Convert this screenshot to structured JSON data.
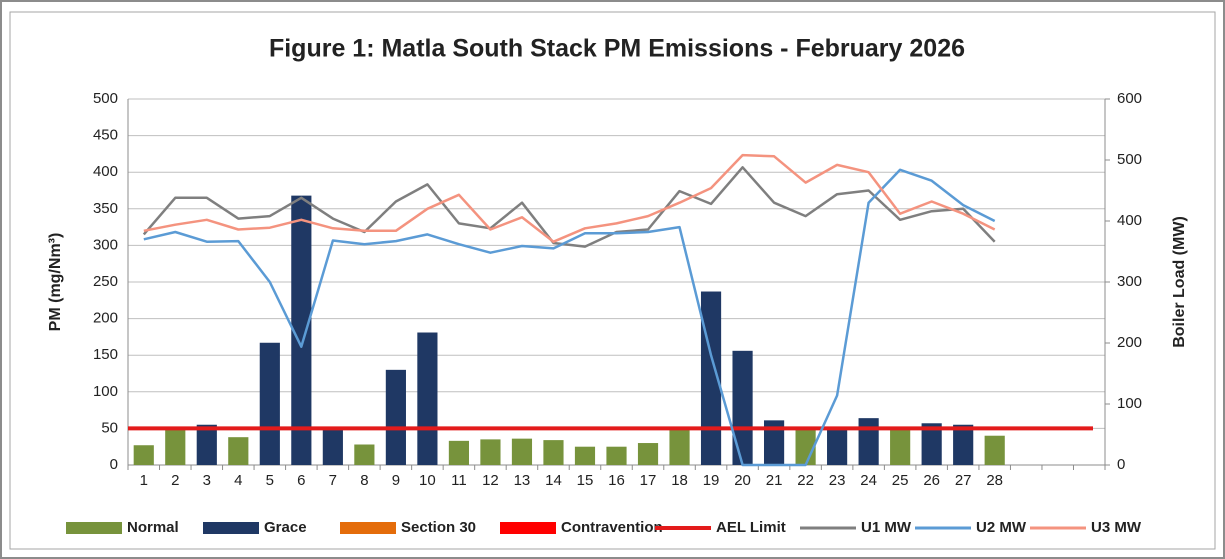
{
  "chart_data": {
    "type": "bar",
    "title": "Figure 1: Matla South Stack PM Emissions - February 2026",
    "ylabel": "PM (mg/Nm³)",
    "y2label": "Boiler Load (MW)",
    "categories": [
      "1",
      "2",
      "3",
      "4",
      "5",
      "6",
      "7",
      "8",
      "9",
      "10",
      "11",
      "12",
      "13",
      "14",
      "15",
      "16",
      "17",
      "18",
      "19",
      "20",
      "21",
      "22",
      "23",
      "24",
      "25",
      "26",
      "27",
      "28",
      null,
      null,
      null
    ],
    "ylim": [
      0,
      500
    ],
    "yticks": [
      0,
      50,
      100,
      150,
      200,
      250,
      300,
      350,
      400,
      450,
      500
    ],
    "y2lim": [
      0,
      600
    ],
    "y2ticks": [
      0,
      100,
      200,
      300,
      400,
      500,
      600
    ],
    "grid": true,
    "legend": "bottom",
    "series": [
      {
        "name": "Normal",
        "type": "bar",
        "color": "#77933c",
        "values": [
          27,
          50,
          null,
          38,
          null,
          null,
          null,
          28,
          null,
          null,
          33,
          35,
          36,
          34,
          25,
          25,
          30,
          50,
          null,
          null,
          null,
          50,
          null,
          null,
          50,
          null,
          null,
          40,
          null,
          null,
          null
        ]
      },
      {
        "name": "Grace",
        "type": "bar",
        "color": "#1f3864",
        "values": [
          null,
          null,
          55,
          null,
          167,
          368,
          50,
          null,
          130,
          181,
          null,
          null,
          null,
          null,
          null,
          null,
          null,
          null,
          237,
          156,
          61,
          null,
          50,
          64,
          null,
          57,
          55,
          null,
          null,
          null,
          null
        ]
      },
      {
        "name": "Section 30",
        "type": "bar",
        "color": "#e46c0a",
        "values": [
          null,
          null,
          null,
          null,
          null,
          null,
          null,
          null,
          null,
          null,
          null,
          null,
          null,
          null,
          null,
          null,
          null,
          null,
          null,
          null,
          null,
          null,
          null,
          null,
          null,
          null,
          null,
          null,
          null,
          null,
          null
        ]
      },
      {
        "name": "Contravention",
        "type": "bar",
        "color": "#ff0000",
        "values": [
          null,
          null,
          null,
          null,
          null,
          null,
          null,
          null,
          null,
          null,
          null,
          null,
          null,
          null,
          null,
          null,
          null,
          null,
          null,
          null,
          null,
          null,
          null,
          null,
          null,
          null,
          null,
          null,
          null,
          null,
          null
        ]
      },
      {
        "name": "AEL Limit",
        "type": "hline",
        "color": "#e31b1b",
        "value": 50
      },
      {
        "name": "U1 MW",
        "type": "line",
        "axis": "y2",
        "color": "#7f7f7f",
        "values": [
          378,
          438,
          438,
          404,
          408,
          438,
          404,
          382,
          432,
          460,
          396,
          388,
          430,
          364,
          358,
          382,
          386,
          449,
          428,
          488,
          430,
          408,
          444,
          450,
          402,
          416,
          420,
          366,
          null,
          null,
          null
        ]
      },
      {
        "name": "U2 MW",
        "type": "line",
        "axis": "y2",
        "color": "#5b9bd5",
        "values": [
          370,
          382,
          366,
          367,
          300,
          194,
          368,
          362,
          367,
          378,
          362,
          348,
          359,
          355,
          380,
          380,
          382,
          390,
          180,
          0,
          0,
          0,
          114,
          430,
          484,
          466,
          426,
          400,
          null,
          null,
          null
        ]
      },
      {
        "name": "U3 MW",
        "type": "line",
        "axis": "y2",
        "color": "#f4937f",
        "values": [
          384,
          394,
          402,
          386,
          389,
          402,
          388,
          384,
          384,
          420,
          443,
          386,
          406,
          366,
          388,
          396,
          408,
          430,
          454,
          508,
          506,
          463,
          492,
          480,
          412,
          432,
          412,
          386,
          null,
          null,
          null
        ]
      }
    ]
  }
}
